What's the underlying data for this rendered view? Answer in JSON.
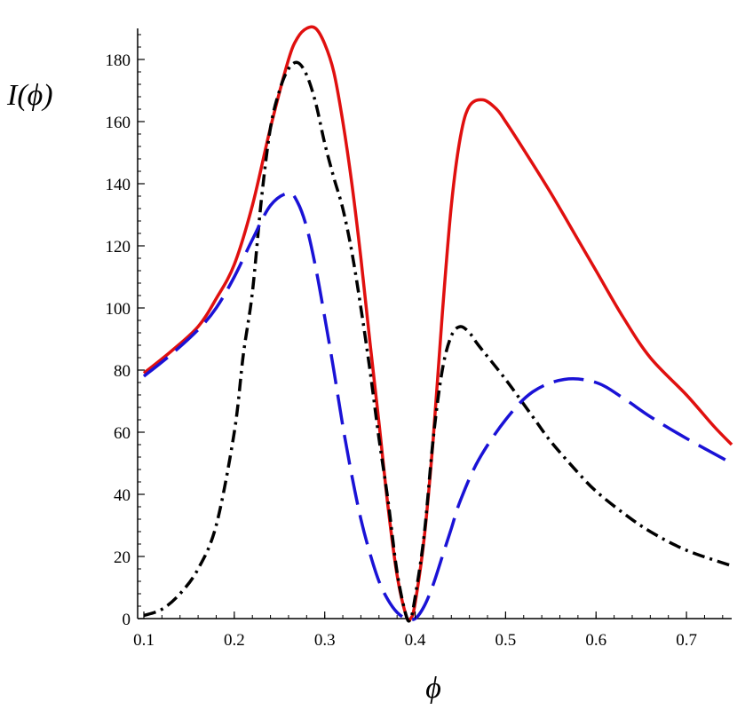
{
  "chart_data": {
    "type": "line",
    "title": "",
    "xlabel": "ϕ",
    "ylabel": "I(ϕ)",
    "xlim": [
      0.1,
      0.75
    ],
    "ylim": [
      0,
      190
    ],
    "xticks": [
      0.1,
      0.2,
      0.3,
      0.4,
      0.5,
      0.6,
      0.7
    ],
    "yticks": [
      0,
      20,
      40,
      60,
      80,
      100,
      120,
      140,
      160,
      180
    ],
    "grid": false,
    "legend": "none",
    "series": [
      {
        "style": "solid",
        "color": "#e0100f",
        "points": [
          [
            0.1,
            79
          ],
          [
            0.13,
            86
          ],
          [
            0.16,
            94
          ],
          [
            0.18,
            103
          ],
          [
            0.2,
            114
          ],
          [
            0.22,
            133
          ],
          [
            0.24,
            158
          ],
          [
            0.26,
            180
          ],
          [
            0.27,
            187
          ],
          [
            0.28,
            190
          ],
          [
            0.29,
            190
          ],
          [
            0.3,
            185
          ],
          [
            0.31,
            176
          ],
          [
            0.32,
            160
          ],
          [
            0.33,
            140
          ],
          [
            0.34,
            116
          ],
          [
            0.35,
            89
          ],
          [
            0.36,
            63
          ],
          [
            0.37,
            36
          ],
          [
            0.38,
            14
          ],
          [
            0.39,
            1
          ],
          [
            0.395,
            0
          ],
          [
            0.4,
            5
          ],
          [
            0.41,
            26
          ],
          [
            0.42,
            58
          ],
          [
            0.43,
            98
          ],
          [
            0.44,
            133
          ],
          [
            0.45,
            155
          ],
          [
            0.46,
            165
          ],
          [
            0.475,
            167
          ],
          [
            0.49,
            164
          ],
          [
            0.5,
            160
          ],
          [
            0.52,
            151
          ],
          [
            0.55,
            137
          ],
          [
            0.58,
            122
          ],
          [
            0.6,
            112
          ],
          [
            0.63,
            97
          ],
          [
            0.66,
            84
          ],
          [
            0.7,
            72
          ],
          [
            0.73,
            62
          ],
          [
            0.75,
            56
          ]
        ]
      },
      {
        "style": "dash-dot",
        "color": "#000000",
        "points": [
          [
            0.1,
            1
          ],
          [
            0.12,
            3
          ],
          [
            0.14,
            8
          ],
          [
            0.16,
            16
          ],
          [
            0.18,
            30
          ],
          [
            0.2,
            60
          ],
          [
            0.21,
            85
          ],
          [
            0.22,
            105
          ],
          [
            0.23,
            135
          ],
          [
            0.24,
            158
          ],
          [
            0.25,
            170
          ],
          [
            0.26,
            177
          ],
          [
            0.27,
            179
          ],
          [
            0.28,
            175
          ],
          [
            0.29,
            166
          ],
          [
            0.3,
            153
          ],
          [
            0.31,
            142
          ],
          [
            0.32,
            132
          ],
          [
            0.33,
            118
          ],
          [
            0.34,
            100
          ],
          [
            0.35,
            80
          ],
          [
            0.36,
            58
          ],
          [
            0.37,
            38
          ],
          [
            0.38,
            15
          ],
          [
            0.39,
            1
          ],
          [
            0.395,
            0
          ],
          [
            0.4,
            7
          ],
          [
            0.41,
            27
          ],
          [
            0.42,
            58
          ],
          [
            0.43,
            80
          ],
          [
            0.44,
            91
          ],
          [
            0.45,
            94
          ],
          [
            0.46,
            92
          ],
          [
            0.47,
            88
          ],
          [
            0.5,
            77
          ],
          [
            0.53,
            65
          ],
          [
            0.55,
            57
          ],
          [
            0.58,
            47
          ],
          [
            0.6,
            41
          ],
          [
            0.63,
            34
          ],
          [
            0.66,
            28
          ],
          [
            0.7,
            22
          ],
          [
            0.75,
            17
          ]
        ]
      },
      {
        "style": "long-dash",
        "color": "#1a12d6",
        "points": [
          [
            0.1,
            78
          ],
          [
            0.13,
            85
          ],
          [
            0.16,
            93
          ],
          [
            0.18,
            100
          ],
          [
            0.2,
            110
          ],
          [
            0.22,
            122
          ],
          [
            0.24,
            133
          ],
          [
            0.26,
            137
          ],
          [
            0.27,
            134
          ],
          [
            0.28,
            126
          ],
          [
            0.29,
            113
          ],
          [
            0.3,
            97
          ],
          [
            0.31,
            80
          ],
          [
            0.32,
            62
          ],
          [
            0.33,
            46
          ],
          [
            0.34,
            32
          ],
          [
            0.35,
            21
          ],
          [
            0.36,
            12
          ],
          [
            0.37,
            6
          ],
          [
            0.38,
            2
          ],
          [
            0.39,
            0
          ],
          [
            0.4,
            0
          ],
          [
            0.41,
            4
          ],
          [
            0.42,
            11
          ],
          [
            0.43,
            20
          ],
          [
            0.44,
            29
          ],
          [
            0.45,
            38
          ],
          [
            0.47,
            51
          ],
          [
            0.5,
            64
          ],
          [
            0.53,
            73
          ],
          [
            0.565,
            77
          ],
          [
            0.6,
            76
          ],
          [
            0.63,
            71
          ],
          [
            0.66,
            65
          ],
          [
            0.7,
            58
          ],
          [
            0.75,
            50
          ]
        ]
      }
    ]
  }
}
